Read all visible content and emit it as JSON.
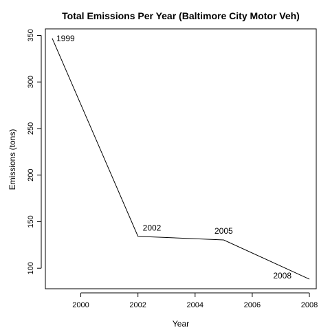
{
  "chart_data": {
    "type": "line",
    "title": "Total Emissions Per Year (Baltimore City Motor Veh)",
    "xlabel": "Year",
    "ylabel": "Emissions (tons)",
    "x": [
      1999,
      2002,
      2005,
      2008
    ],
    "series": [
      {
        "values": [
          346.8,
          134.3,
          130.4,
          88.3
        ]
      }
    ],
    "point_labels": [
      "1999",
      "2002",
      "2005",
      "2008"
    ],
    "xticks": [
      2000,
      2002,
      2004,
      2006,
      2008
    ],
    "xtick_labels": [
      "2000",
      "2002",
      "2004",
      "2006",
      "2008"
    ],
    "yticks": [
      100,
      150,
      200,
      250,
      300,
      350
    ],
    "ytick_labels": [
      "100",
      "150",
      "200",
      "250",
      "300",
      "350"
    ],
    "xlim": [
      1998.76,
      2008.24
    ],
    "ylim": [
      78.0,
      357.0
    ],
    "grid": false,
    "line_color": "#000000"
  }
}
